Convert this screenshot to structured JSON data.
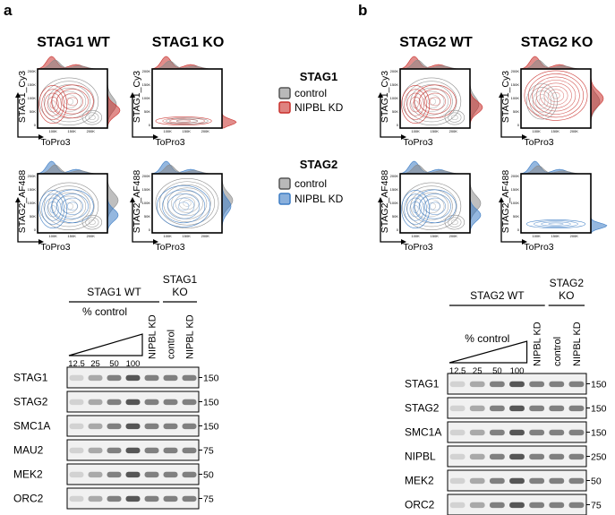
{
  "panel_a": {
    "label": "a",
    "plot_titles": [
      "STAG1 WT",
      "STAG1 KO"
    ],
    "y_axis_labels": [
      "STAG1_Cy3",
      "STAG2_AF488"
    ],
    "x_axis_label": "ToPro3",
    "x_ticks": [
      "100K",
      "150K",
      "200K"
    ],
    "y_ticks": [
      "0",
      "50K",
      "100K",
      "150K",
      "200K"
    ],
    "blot": {
      "groups": [
        {
          "lines": [
            "STAG1 WT"
          ]
        },
        {
          "lines": [
            "STAG1",
            "KO"
          ]
        }
      ],
      "gradient_label": "% control",
      "lane_labels": [
        "12.5",
        "25",
        "50",
        "100",
        "NIPBL KD",
        "control",
        "NIPBL KD"
      ],
      "rows": [
        {
          "protein": "STAG1",
          "mw": "150"
        },
        {
          "protein": "STAG2",
          "mw": "150"
        },
        {
          "protein": "SMC1A",
          "mw": "150"
        },
        {
          "protein": "MAU2",
          "mw": "75"
        },
        {
          "protein": "MEK2",
          "mw": "50"
        },
        {
          "protein": "ORC2",
          "mw": "75"
        }
      ]
    }
  },
  "legend": [
    {
      "title": "STAG1",
      "items": [
        "control",
        "NIPBL KD"
      ]
    },
    {
      "title": "STAG2",
      "items": [
        "control",
        "NIPBL KD"
      ]
    }
  ],
  "panel_b": {
    "label": "b",
    "plot_titles": [
      "STAG2 WT",
      "STAG2 KO"
    ],
    "y_axis_labels": [
      "STAG1_Cy3",
      "STAG2_AF488"
    ],
    "x_axis_label": "ToPro3",
    "x_ticks": [
      "100K",
      "150K",
      "200K"
    ],
    "y_ticks": [
      "0",
      "50K",
      "100K",
      "150K",
      "200K"
    ],
    "blot": {
      "groups": [
        {
          "lines": [
            "STAG2 WT"
          ]
        },
        {
          "lines": [
            "STAG2",
            "KO"
          ]
        }
      ],
      "gradient_label": "% control",
      "lane_labels": [
        "12.5",
        "25",
        "50",
        "100",
        "NIPBL KD",
        "control",
        "NIPBL KD"
      ],
      "rows": [
        {
          "protein": "STAG1",
          "mw": "150"
        },
        {
          "protein": "STAG2",
          "mw": "150"
        },
        {
          "protein": "SMC1A",
          "mw": "150"
        },
        {
          "protein": "NIPBL",
          "mw": "250"
        },
        {
          "protein": "MEK2",
          "mw": "50"
        },
        {
          "protein": "ORC2",
          "mw": "75"
        }
      ]
    }
  }
}
